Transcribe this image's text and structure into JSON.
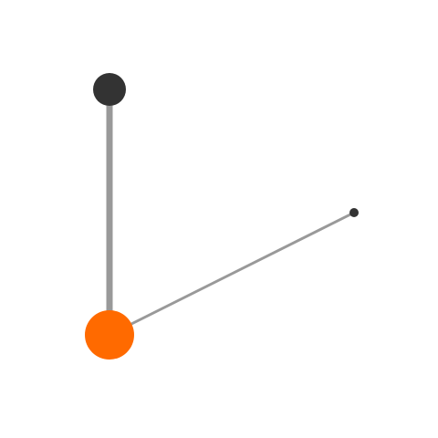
{
  "colors": {
    "background": "#ffffff",
    "edge": "#999999",
    "node_dark": "#333333",
    "node_accent": "#ff6a00"
  },
  "nodes": [
    {
      "id": "top",
      "color": "#333333"
    },
    {
      "id": "origin",
      "color": "#ff6a00"
    },
    {
      "id": "right",
      "color": "#333333"
    }
  ],
  "edges": [
    {
      "from": "origin",
      "to": "top"
    },
    {
      "from": "origin",
      "to": "right"
    }
  ]
}
